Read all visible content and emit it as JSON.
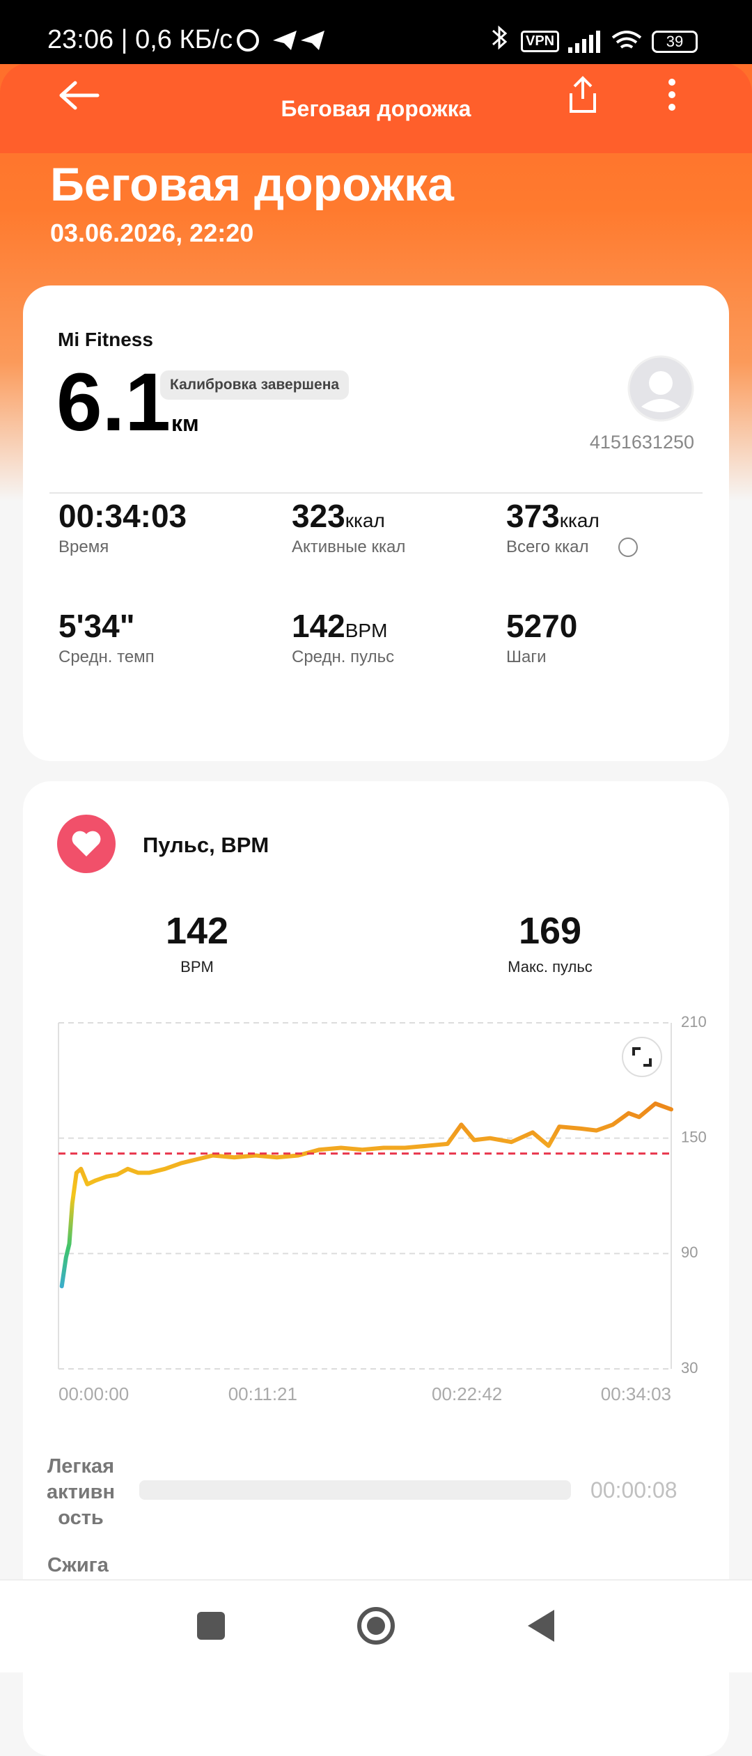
{
  "status_bar": {
    "time": "23:06 | 0,6 КБ/с",
    "vpn": "VPN",
    "battery": "39"
  },
  "header": {
    "title": "Беговая дорожка"
  },
  "hero": {
    "title": "Беговая дорожка",
    "date": "03.06.2026, 22:20"
  },
  "summary": {
    "source": "Mi Fitness",
    "distance": "6.1",
    "unit": "км",
    "badge": "Калибровка завершена",
    "user_id": "4151631250",
    "stats": [
      {
        "value": "00:34:03",
        "label": "Время"
      },
      {
        "value": "323",
        "unit": "ккал",
        "label": "Активные ккал"
      },
      {
        "value": "373",
        "unit": "ккал",
        "label": "Всего ккал"
      },
      {
        "value": "5'34\"",
        "label": "Средн. темп"
      },
      {
        "value": "142",
        "unit": "BPM",
        "label": "Средн. пульс"
      },
      {
        "value": "5270",
        "label": "Шаги"
      }
    ]
  },
  "heart_rate": {
    "title": "Пульс, BPM",
    "summary": [
      {
        "value": 142,
        "label": "BPM"
      },
      {
        "value": 169,
        "label": "Макс. пульс"
      }
    ]
  },
  "chart_data": {
    "type": "line",
    "x": [
      11,
      25,
      36,
      46,
      60,
      75,
      96,
      124,
      160,
      195,
      231,
      266,
      302,
      355,
      409,
      462,
      515,
      586,
      657,
      728,
      799,
      870,
      942,
      1013,
      1084,
      1155,
      1226,
      1297,
      1343,
      1386,
      1439,
      1510,
      1581,
      1634,
      1670,
      1741,
      1794,
      1848,
      1901,
      1936,
      1990,
      2043
    ],
    "series": [
      {
        "colors": [
          "#3aa6ea",
          "#3ec46c",
          "#f4c51c",
          "#f2a521",
          "#ea7d18"
        ],
        "values": [
          73,
          88,
          95,
          116,
          132,
          134,
          126,
          128,
          130,
          131,
          134,
          132,
          132,
          134,
          137,
          139,
          141,
          140,
          141,
          140,
          141,
          144,
          145,
          144,
          145,
          145,
          146,
          147,
          157,
          149,
          150,
          148,
          153,
          146,
          156,
          155,
          154,
          157,
          163,
          161,
          168,
          165
        ]
      }
    ],
    "xlim": [
      0,
      2043
    ],
    "xticks": [
      {
        "value": 0,
        "label": "00:00:00"
      },
      {
        "value": 681,
        "label": "00:11:21"
      },
      {
        "value": 1362,
        "label": "00:22:42"
      },
      {
        "value": 2043,
        "label": "00:34:03"
      }
    ],
    "ylim": [
      30,
      210
    ],
    "yticks": [
      30,
      90,
      150,
      210
    ],
    "grid": true
  },
  "zones": [
    {
      "name": "Легкая активность",
      "value": "00:00:08"
    },
    {
      "name": "Сжига"
    }
  ]
}
